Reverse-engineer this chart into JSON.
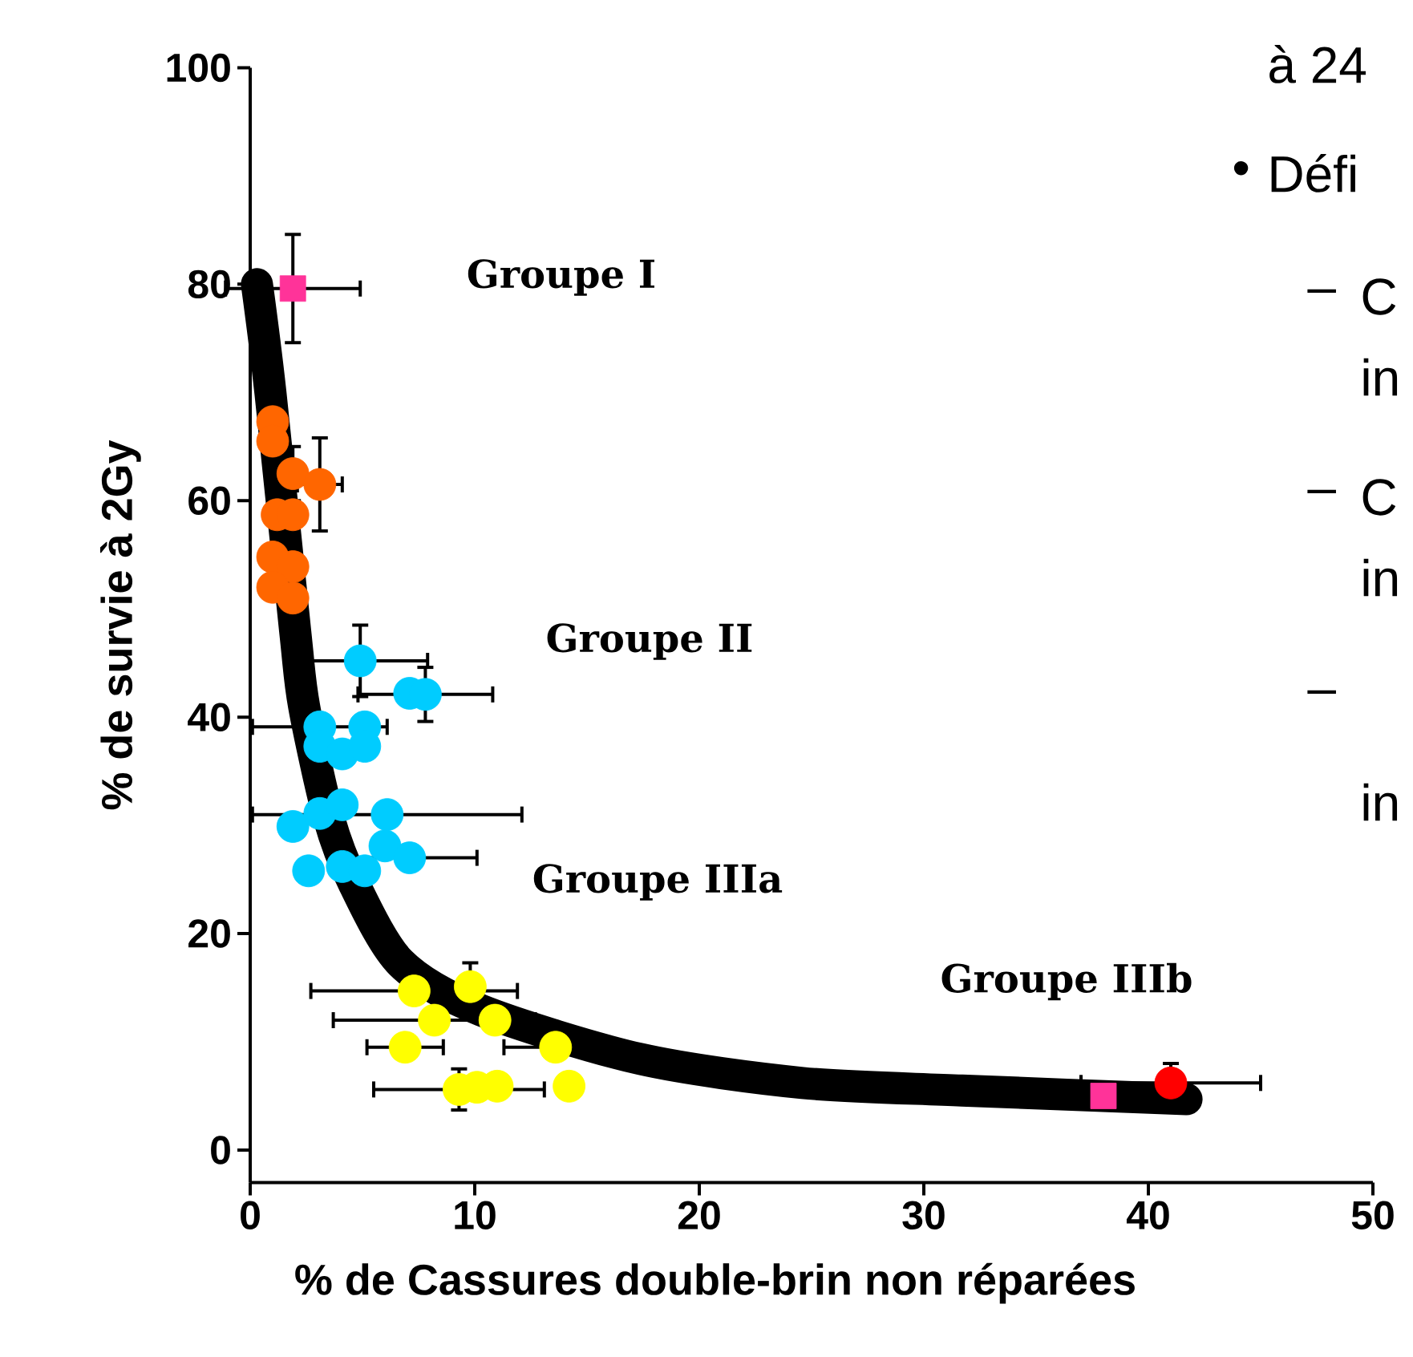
{
  "chart_data": {
    "type": "scatter",
    "xlabel": "% de Cassures double-brin non réparées",
    "ylabel": "% de survie à 2Gy",
    "xlim": [
      0,
      50
    ],
    "ylim": [
      -3,
      100
    ],
    "xticks": [
      0,
      10,
      20,
      30,
      40,
      50
    ],
    "yticks": [
      0,
      20,
      40,
      60,
      80,
      100
    ],
    "series": [
      {
        "type": "line",
        "color": "#000000",
        "marker": "none",
        "x": [
          0.3,
          0.9,
          2.0,
          2.4,
          3.5,
          4.6,
          6.7,
          10.3,
          17.4,
          24.6,
          31.7,
          41.7
        ],
        "values": [
          80,
          70,
          48,
          41,
          30.7,
          24.7,
          17.3,
          12.9,
          8.4,
          6.2,
          5.5,
          4.7
        ]
      },
      {
        "color": "#ff6600",
        "marker": "circle",
        "x": [
          1.0,
          1.0,
          1.9,
          3.1,
          1.2,
          1.9,
          1.0,
          1.9,
          1.0,
          1.9
        ],
        "values": [
          67.3,
          65.5,
          62.5,
          61.5,
          58.7,
          58.7,
          54.8,
          53.9,
          52.0,
          51.0
        ],
        "xerrors": [
          null,
          null,
          null,
          1.0,
          null,
          null,
          null,
          null,
          null,
          null
        ],
        "errors": [
          null,
          null,
          2.5,
          4.3,
          null,
          null,
          null,
          null,
          null,
          null
        ]
      },
      {
        "color": "#00ccff",
        "marker": "circle",
        "x": [
          4.9,
          7.1,
          7.8,
          3.1,
          5.1,
          3.1,
          4.1,
          5.1,
          1.9,
          3.1,
          4.1,
          6.1,
          6.0,
          7.1,
          2.6,
          4.1,
          5.1
        ],
        "values": [
          45.2,
          42.2,
          42.1,
          39.1,
          39.1,
          37.3,
          36.6,
          37.3,
          29.9,
          31.1,
          31.9,
          31.0,
          28.1,
          27.0,
          25.8,
          26.2,
          25.8
        ],
        "xerrors": [
          3,
          null,
          3,
          3,
          null,
          null,
          null,
          null,
          null,
          null,
          null,
          6,
          null,
          3,
          null,
          null,
          null
        ],
        "errors": [
          3.3,
          null,
          2.5,
          null,
          null,
          null,
          null,
          null,
          null,
          null,
          null,
          null,
          null,
          null,
          null,
          null,
          null
        ]
      },
      {
        "color": "#ffff00",
        "marker": "circle",
        "x": [
          7.3,
          9.8,
          8.2,
          10.9,
          6.9,
          13.6,
          9.3,
          10.1,
          11.0,
          14.2
        ],
        "values": [
          14.7,
          15.1,
          12.0,
          12.0,
          9.5,
          9.5,
          5.6,
          5.8,
          5.9,
          5.9
        ],
        "xerrors": [
          4.6,
          null,
          4.5,
          null,
          1.7,
          2.3,
          3.8,
          null,
          null,
          null
        ],
        "errors": [
          null,
          2.2,
          null,
          null,
          null,
          null,
          1.9,
          null,
          null,
          null
        ]
      },
      {
        "color": "#ff3399",
        "marker": "square",
        "x": [
          1.9,
          38
        ],
        "values": [
          79.6,
          5.0
        ],
        "xerrors": [
          3,
          null
        ],
        "errors": [
          5,
          null
        ]
      },
      {
        "color": "#ff0000",
        "marker": "circle",
        "x": [
          41
        ],
        "values": [
          6.2
        ],
        "xerrors": [
          4
        ],
        "errors": [
          1.8
        ]
      }
    ],
    "annotations": [
      "Groupe I",
      "Groupe II",
      "Groupe IIIa",
      "Groupe IIIb",
      "à 24",
      "•",
      "Défi",
      "–",
      "C",
      "in",
      "–",
      "C",
      "in",
      "–",
      "in"
    ]
  }
}
